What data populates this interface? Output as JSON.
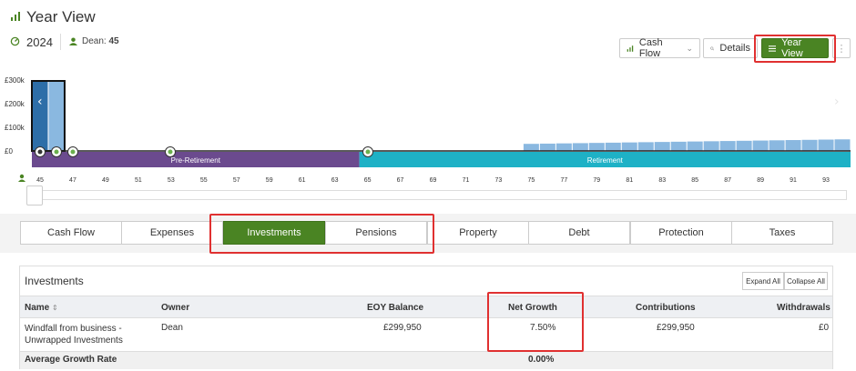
{
  "header": {
    "title": "Year View",
    "year": "2024",
    "person_name": "Dean:",
    "person_age": "45"
  },
  "toolbar": {
    "cashflow_label": "Cash Flow",
    "details_label": "Details",
    "yearview_label": "Year View",
    "more_label": "⋮"
  },
  "chart": {
    "y_ticks": [
      "£300k",
      "£200k",
      "£100k",
      "£0"
    ],
    "phase_pre": "Pre-Retirement",
    "phase_retire": "Retirement",
    "ages": [
      "45",
      "47",
      "49",
      "51",
      "53",
      "55",
      "57",
      "59",
      "61",
      "63",
      "65",
      "67",
      "69",
      "71",
      "73",
      "75",
      "77",
      "79",
      "81",
      "83",
      "85",
      "87",
      "89",
      "91",
      "93"
    ],
    "colors": {
      "pre": "#6b4a8e",
      "retire": "#1eb1c6",
      "bar": "#8ab8e0",
      "selected": "#2d6ea8"
    }
  },
  "chart_data": {
    "type": "bar",
    "categories": [
      45,
      46,
      47,
      48,
      49,
      50,
      51,
      52,
      53,
      54,
      55,
      56,
      57,
      58,
      59,
      60,
      61,
      62,
      63,
      64,
      65,
      66,
      67,
      68,
      69,
      70,
      71,
      72,
      73,
      74,
      75,
      76,
      77,
      78,
      79,
      80,
      81,
      82,
      83,
      84,
      85,
      86,
      87,
      88,
      89,
      90,
      91,
      92,
      93,
      94
    ],
    "values": [
      300000,
      300000,
      0,
      0,
      0,
      0,
      0,
      0,
      0,
      0,
      0,
      0,
      0,
      0,
      0,
      0,
      0,
      0,
      0,
      0,
      0,
      0,
      0,
      0,
      0,
      0,
      0,
      0,
      0,
      0,
      30000,
      31000,
      32000,
      33000,
      34000,
      35000,
      36000,
      37000,
      38000,
      39000,
      40000,
      41000,
      42000,
      43000,
      44000,
      45000,
      46000,
      47000,
      48000,
      49000
    ],
    "ylim": [
      0,
      300000
    ]
  },
  "tabs": [
    "Cash Flow",
    "Expenses",
    "Investments",
    "Pensions",
    "Property",
    "Debt",
    "Protection",
    "Taxes"
  ],
  "active_tab": "Investments",
  "investments": {
    "title": "Investments",
    "expand_all": "Expand All",
    "collapse_all": "Collapse All",
    "columns": {
      "name": "Name",
      "owner": "Owner",
      "eoy": "EOY Balance",
      "growth": "Net Growth",
      "contributions": "Contributions",
      "withdrawals": "Withdrawals"
    },
    "row": {
      "name_line1": "Windfall from business -",
      "name_line2": "Unwrapped Investments",
      "owner": "Dean",
      "eoy": "£299,950",
      "growth": "7.50%",
      "contributions": "£299,950",
      "withdrawals": "£0"
    },
    "average": {
      "label": "Average Growth Rate",
      "value": "0.00%"
    }
  }
}
